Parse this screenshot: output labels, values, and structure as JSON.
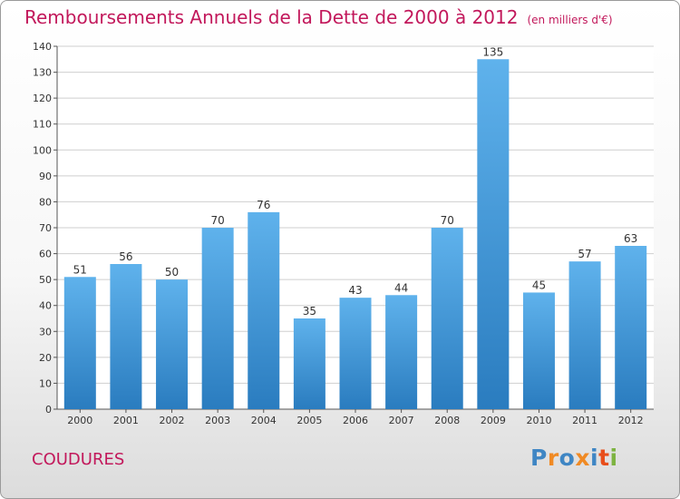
{
  "chart_title": "Remboursements Annuels de la Dette de 2000 à 2012",
  "chart_unit": "(en milliers d'€)",
  "location_name": "COUDURES",
  "logo": {
    "text": "Proxiti",
    "letter_colors": [
      "#3f86c4",
      "#f08a24",
      "#3f86c4",
      "#f08a24",
      "#3f86c4",
      "#e84e1b",
      "#7db341"
    ]
  },
  "colors": {
    "title": "#c2185b",
    "bar_top": "#5fb2ec",
    "bar_bottom": "#2a7cbf",
    "grid": "#cfcfcf"
  },
  "chart_data": {
    "type": "bar",
    "categories": [
      "2000",
      "2001",
      "2002",
      "2003",
      "2004",
      "2005",
      "2006",
      "2007",
      "2008",
      "2009",
      "2010",
      "2011",
      "2012"
    ],
    "values": [
      51,
      56,
      50,
      70,
      76,
      35,
      43,
      44,
      70,
      135,
      45,
      57,
      63
    ],
    "title": "Remboursements Annuels de la Dette de 2000 à 2012",
    "ylim": [
      0,
      140
    ],
    "yticks": [
      0,
      10,
      20,
      30,
      40,
      50,
      60,
      70,
      80,
      90,
      100,
      110,
      120,
      130,
      140
    ],
    "grid": true,
    "data_labels": true
  }
}
